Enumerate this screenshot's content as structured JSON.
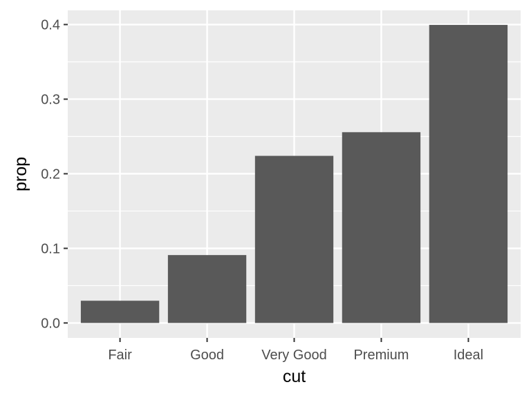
{
  "chart_data": {
    "type": "bar",
    "categories": [
      "Fair",
      "Good",
      "Very Good",
      "Premium",
      "Ideal"
    ],
    "values": [
      0.0298,
      0.091,
      0.224,
      0.2557,
      0.3995
    ],
    "xlabel": "cut",
    "ylabel": "prop",
    "ylim": [
      -0.02,
      0.419
    ],
    "yticks": [
      0.0,
      0.1,
      0.2,
      0.3,
      0.4
    ],
    "ytick_labels": [
      "0.0",
      "0.1",
      "0.2",
      "0.3",
      "0.4"
    ],
    "grid": true,
    "legend": "none",
    "colors": {
      "panel": "#ebebeb",
      "grid": "#ffffff",
      "bar": "#595959",
      "tick": "#333333",
      "tick_text": "#4d4d4d",
      "title_text": "#000000"
    }
  }
}
